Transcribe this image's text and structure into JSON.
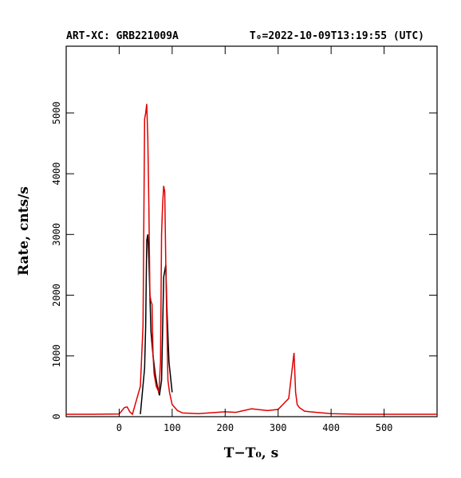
{
  "chart_data": {
    "type": "line",
    "title": "ART-XC: GRB221009A",
    "subtitle": "T₀=2022-10-09T13:19:55 (UTC)",
    "x_label": "T−T₀, s",
    "y_label": "Rate, cnts/s",
    "xlim": [
      -100,
      600
    ],
    "xticks": [
      0,
      100,
      200,
      300,
      400,
      500
    ],
    "ylim": [
      0,
      6100
    ],
    "yticks": [
      0,
      1000,
      2000,
      3000,
      4000,
      5000
    ],
    "series": [
      {
        "name": "black",
        "color": "#000000",
        "x": [
          40,
          48,
          50,
          52,
          54,
          56,
          58,
          60,
          64,
          68,
          72,
          76,
          80,
          84,
          86,
          88,
          90,
          94,
          100
        ],
        "values": [
          40,
          800,
          1500,
          2900,
          3000,
          2600,
          2000,
          1400,
          1000,
          700,
          500,
          350,
          600,
          2300,
          2400,
          2500,
          1800,
          900,
          400
        ]
      },
      {
        "name": "red",
        "color": "#e00000",
        "x": [
          -100,
          -50,
          0,
          10,
          15,
          20,
          25,
          40,
          45,
          48,
          50,
          52,
          54,
          56,
          58,
          60,
          62,
          64,
          66,
          70,
          75,
          78,
          80,
          82,
          84,
          86,
          88,
          90,
          92,
          95,
          100,
          110,
          120,
          150,
          200,
          220,
          250,
          280,
          300,
          320,
          330,
          333,
          336,
          340,
          350,
          360,
          400,
          450,
          500,
          600
        ],
        "values": [
          40,
          40,
          45,
          150,
          160,
          80,
          40,
          500,
          1500,
          4900,
          5000,
          5150,
          4600,
          3500,
          2000,
          1900,
          1850,
          1000,
          700,
          500,
          400,
          900,
          3000,
          3500,
          3800,
          3700,
          2500,
          1500,
          600,
          400,
          200,
          100,
          60,
          50,
          80,
          70,
          130,
          100,
          120,
          300,
          1050,
          400,
          200,
          150,
          90,
          80,
          50,
          40,
          40,
          40
        ]
      }
    ]
  }
}
